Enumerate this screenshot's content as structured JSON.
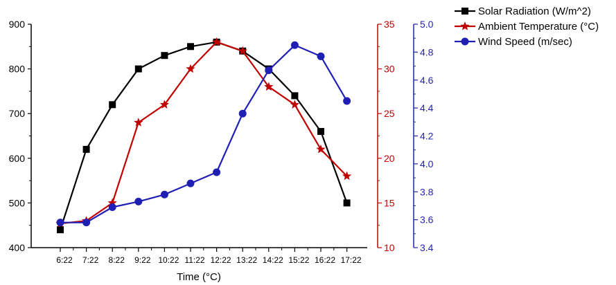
{
  "chart_data": {
    "type": "line",
    "title": "",
    "xlabel": "Time (°C)",
    "categories": [
      "6:22",
      "7:22",
      "8:22",
      "9:22",
      "10:22",
      "11:22",
      "12:22",
      "13:22",
      "14:22",
      "15:22",
      "16:22",
      "17:22"
    ],
    "axes": {
      "left": {
        "ylim": [
          400,
          900
        ],
        "ticks": [
          "400",
          "500",
          "600",
          "700",
          "800",
          "900"
        ],
        "color": "#000000"
      },
      "right1": {
        "ylim": [
          10,
          35
        ],
        "ticks": [
          "10",
          "15",
          "20",
          "25",
          "30",
          "35"
        ],
        "color": "#c00000"
      },
      "right2": {
        "ylim": [
          3.4,
          5.0
        ],
        "ticks": [
          "3.4",
          "3.6",
          "3.8",
          "4.0",
          "4.2",
          "4.4",
          "4.6",
          "4.8",
          "5.0"
        ],
        "color": "#1f1fb4"
      }
    },
    "series": [
      {
        "name": "Solar Radiation (W/m^2)",
        "axis": "left",
        "marker": "square",
        "color": "#000000",
        "values": [
          440,
          620,
          720,
          800,
          830,
          850,
          860,
          840,
          800,
          740,
          660,
          500
        ]
      },
      {
        "name": "Ambient Temperature (°C)",
        "axis": "right1",
        "marker": "star",
        "color": "#c00000",
        "values": [
          12.7,
          13.0,
          15.0,
          24.0,
          26.0,
          30.0,
          33.0,
          32.0,
          28.0,
          26.0,
          21.0,
          18.0
        ]
      },
      {
        "name": "Wind Speed (m/sec)",
        "axis": "right2",
        "marker": "circle",
        "color": "#1f1fb4",
        "values": [
          3.58,
          3.58,
          3.69,
          3.73,
          3.78,
          3.86,
          3.94,
          4.36,
          4.67,
          4.85,
          4.77,
          4.45
        ]
      }
    ],
    "legend_position": "top-right",
    "grid": false
  }
}
